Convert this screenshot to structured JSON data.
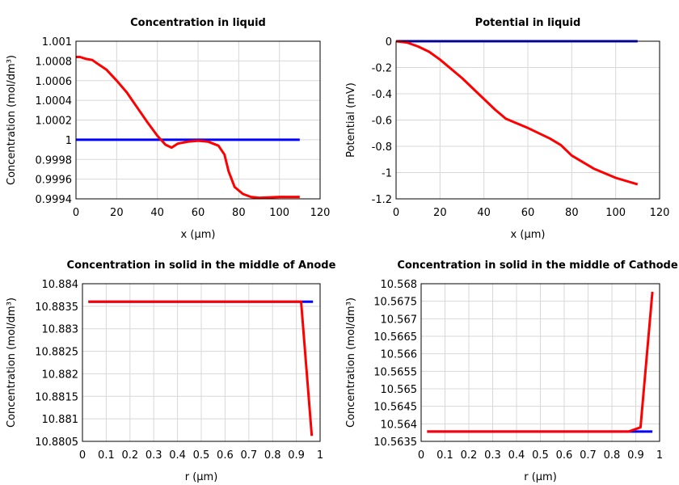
{
  "chart_data": [
    {
      "type": "line",
      "title": "Concentration in liquid",
      "xlabel": "x (µm)",
      "ylabel": "Concentration (mol/dm³)",
      "xlim": [
        0,
        120
      ],
      "ylim": [
        0.9994,
        1.001
      ],
      "xticks": [
        "0",
        "20",
        "40",
        "60",
        "80",
        "100",
        "120"
      ],
      "xtick_values": [
        0,
        20,
        40,
        60,
        80,
        100,
        120
      ],
      "yticks": [
        "0.9994",
        "0.9996",
        "0.9998",
        "1",
        "1.0002",
        "1.0004",
        "1.0006",
        "1.0008",
        "1.001"
      ],
      "ytick_values": [
        0.9994,
        0.9996,
        0.9998,
        1,
        1.0002,
        1.0004,
        1.0006,
        1.0008,
        1.001
      ],
      "grid": true,
      "series": [
        {
          "color": "#0000ff",
          "x": [
            0,
            110
          ],
          "y": [
            1,
            1
          ]
        },
        {
          "color": "#ff0000",
          "x": [
            0,
            2,
            5,
            8,
            10,
            15,
            20,
            25,
            30,
            35,
            40,
            44,
            47,
            50,
            55,
            60,
            65,
            70,
            73,
            75,
            78,
            82,
            86,
            90,
            100,
            110
          ],
          "y": [
            1.00084,
            1.00084,
            1.00082,
            1.00081,
            1.00078,
            1.00071,
            1.0006,
            1.00048,
            1.00033,
            1.00018,
            1.00004,
            0.99995,
            0.99992,
            0.99996,
            0.99998,
            0.99999,
            0.99998,
            0.99994,
            0.99985,
            0.99968,
            0.99952,
            0.99945,
            0.99942,
            0.99941,
            0.99942,
            0.99942
          ]
        }
      ]
    },
    {
      "type": "line",
      "title": "Potential in liquid",
      "xlabel": "x (µm)",
      "ylabel": "Potential (mV)",
      "xlim": [
        0,
        120
      ],
      "ylim": [
        -1.2,
        0
      ],
      "xticks": [
        "0",
        "20",
        "40",
        "60",
        "80",
        "100",
        "120"
      ],
      "xtick_values": [
        0,
        20,
        40,
        60,
        80,
        100,
        120
      ],
      "yticks": [
        "-1.2",
        "-1",
        "-0.8",
        "-0.6",
        "-0.4",
        "-0.2",
        "0"
      ],
      "ytick_values": [
        -1.2,
        -1,
        -0.8,
        -0.6,
        -0.4,
        -0.2,
        0
      ],
      "grid": true,
      "series": [
        {
          "color": "#0000ff",
          "x": [
            0,
            110
          ],
          "y": [
            0,
            0
          ]
        },
        {
          "color": "#ff0000",
          "x": [
            0,
            5,
            10,
            15,
            20,
            30,
            40,
            45,
            50,
            60,
            70,
            75,
            80,
            90,
            100,
            110
          ],
          "y": [
            0,
            -0.01,
            -0.04,
            -0.08,
            -0.14,
            -0.28,
            -0.44,
            -0.52,
            -0.59,
            -0.66,
            -0.74,
            -0.79,
            -0.87,
            -0.97,
            -1.04,
            -1.09
          ]
        }
      ]
    },
    {
      "type": "line",
      "title": "Concentration in solid in the middle of Anode",
      "xlabel": "r (µm)",
      "ylabel": "Concentration (mol/dm³)",
      "xlim": [
        0,
        1
      ],
      "ylim": [
        10.8805,
        10.884
      ],
      "xticks": [
        "0",
        "0.1",
        "0.2",
        "0.3",
        "0.4",
        "0.5",
        "0.6",
        "0.7",
        "0.8",
        "0.9",
        "1"
      ],
      "xtick_values": [
        0,
        0.1,
        0.2,
        0.3,
        0.4,
        0.5,
        0.6,
        0.7,
        0.8,
        0.9,
        1
      ],
      "yticks": [
        "10.8805",
        "10.881",
        "10.8815",
        "10.882",
        "10.8825",
        "10.883",
        "10.8835",
        "10.884"
      ],
      "ytick_values": [
        10.8805,
        10.881,
        10.8815,
        10.882,
        10.8825,
        10.883,
        10.8835,
        10.884
      ],
      "grid": true,
      "series": [
        {
          "color": "#0000ff",
          "x": [
            0.025,
            0.97
          ],
          "y": [
            10.8836,
            10.8836
          ]
        },
        {
          "color": "#ff0000",
          "x": [
            0.025,
            0.92,
            0.965
          ],
          "y": [
            10.8836,
            10.8836,
            10.88062
          ]
        }
      ]
    },
    {
      "type": "line",
      "title": "Concentration in solid in the middle of Cathode",
      "xlabel": "r (µm)",
      "ylabel": "Concentration (mol/dm³)",
      "xlim": [
        0,
        1
      ],
      "ylim": [
        10.5635,
        10.568
      ],
      "xticks": [
        "0",
        "0.1",
        "0.2",
        "0.3",
        "0.4",
        "0.5",
        "0.6",
        "0.7",
        "0.8",
        "0.9",
        "1"
      ],
      "xtick_values": [
        0,
        0.1,
        0.2,
        0.3,
        0.4,
        0.5,
        0.6,
        0.7,
        0.8,
        0.9,
        1
      ],
      "yticks": [
        "10.5635",
        "10.564",
        "10.5645",
        "10.565",
        "10.5655",
        "10.566",
        "10.5665",
        "10.567",
        "10.5675",
        "10.568"
      ],
      "ytick_values": [
        10.5635,
        10.564,
        10.5645,
        10.565,
        10.5655,
        10.566,
        10.5665,
        10.567,
        10.5675,
        10.568
      ],
      "grid": true,
      "series": [
        {
          "color": "#0000ff",
          "x": [
            0.025,
            0.97
          ],
          "y": [
            10.56378,
            10.56378
          ]
        },
        {
          "color": "#ff0000",
          "x": [
            0.025,
            0.87,
            0.92,
            0.97
          ],
          "y": [
            10.56378,
            10.56378,
            10.5639,
            10.56777
          ]
        }
      ]
    }
  ]
}
